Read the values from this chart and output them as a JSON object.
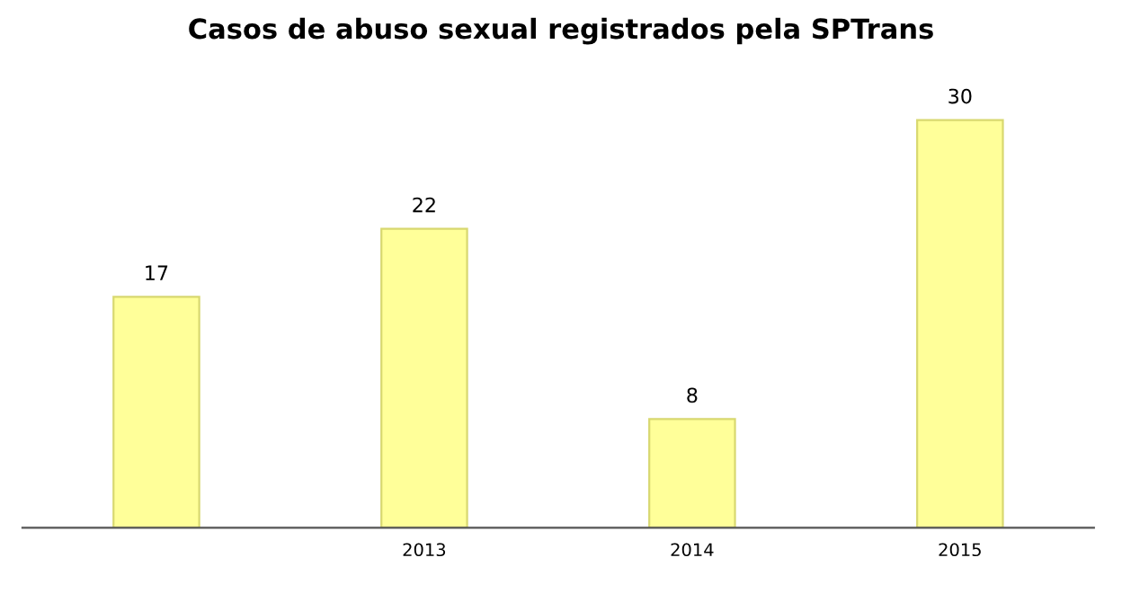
{
  "chart_data": {
    "type": "bar",
    "title": "Casos de abuso sexual registrados pela SPTrans",
    "categories": [
      null,
      "2013",
      "2014",
      "2015"
    ],
    "values": [
      17,
      22,
      8,
      30
    ],
    "color": "#ffff99",
    "data_labels": true,
    "grid": false,
    "legend": false
  }
}
